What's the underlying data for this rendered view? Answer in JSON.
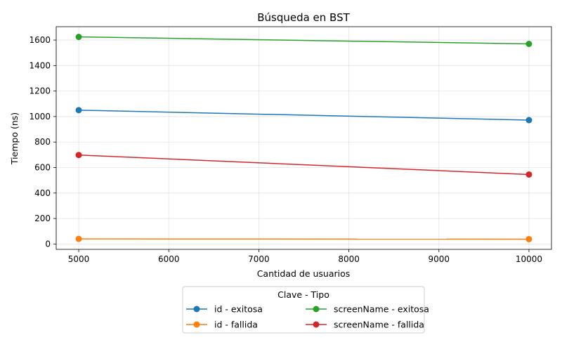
{
  "chart_data": {
    "type": "line",
    "title": "Búsqueda en BST",
    "xlabel": "Cantidad de usuarios",
    "ylabel": "Tiempo (ns)",
    "xlim": [
      4750,
      10250
    ],
    "ylim": [
      -42,
      1705
    ],
    "xticks": [
      5000,
      6000,
      7000,
      8000,
      9000,
      10000
    ],
    "yticks": [
      0,
      200,
      400,
      600,
      800,
      1000,
      1200,
      1400,
      1600
    ],
    "grid": true,
    "legend": {
      "title": "Clave - Tipo",
      "placement": "bottom-center",
      "columns": 2
    },
    "x": [
      5000,
      10000
    ],
    "series": [
      {
        "name": "id - exitosa",
        "color": "#1f77b4",
        "values": [
          1050,
          972
        ]
      },
      {
        "name": "id - fallida",
        "color": "#ff7f0e",
        "values": [
          40,
          38
        ]
      },
      {
        "name": "screenName - exitosa",
        "color": "#2ca02c",
        "values": [
          1625,
          1570
        ]
      },
      {
        "name": "screenName - fallida",
        "color": "#d62728",
        "values": [
          698,
          545
        ]
      }
    ]
  }
}
